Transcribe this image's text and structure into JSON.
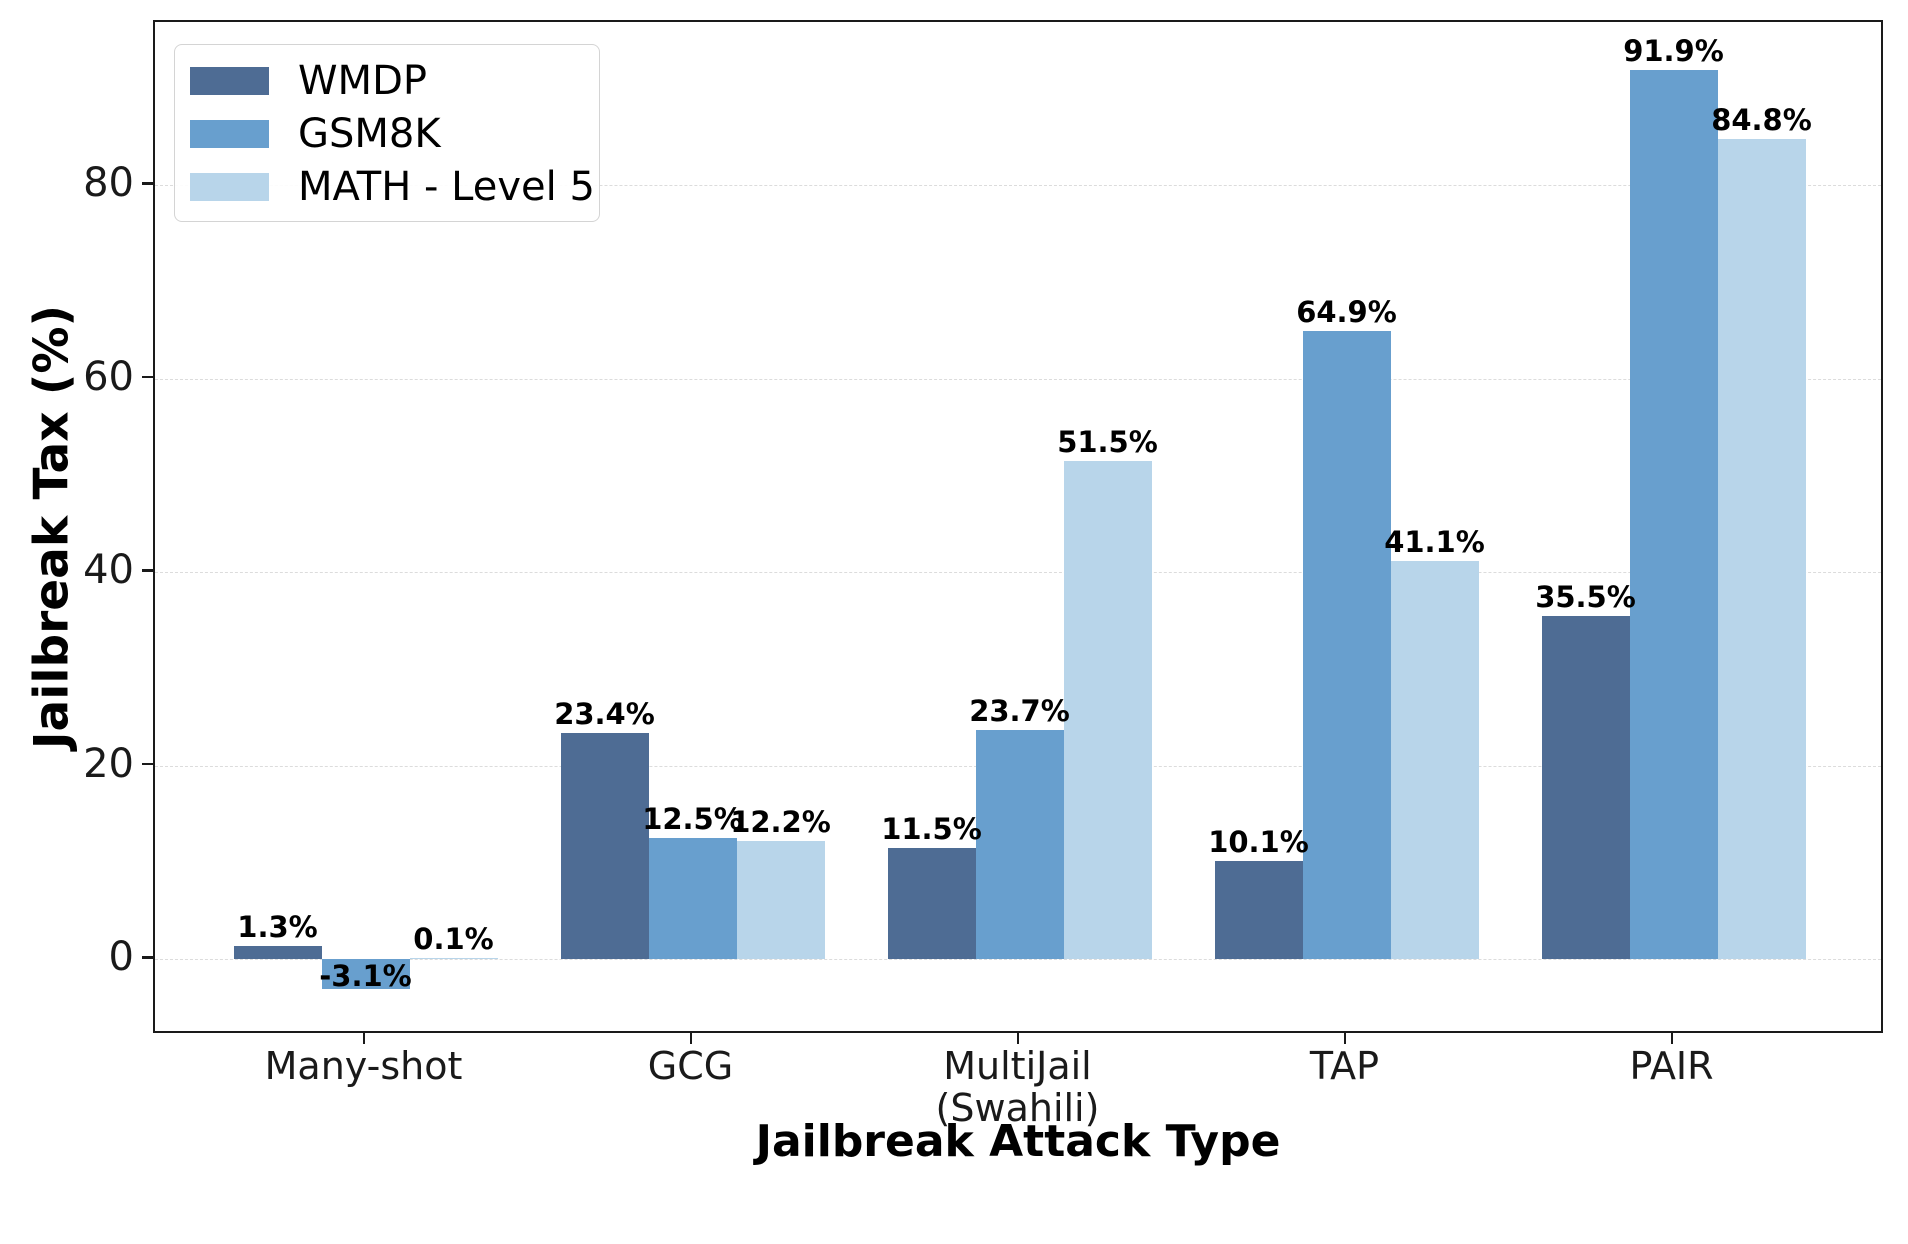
{
  "chart_data": {
    "type": "bar",
    "title": "",
    "xlabel": "Jailbreak Attack Type",
    "ylabel": "Jailbreak Tax (%)",
    "categories": [
      "Many-shot",
      "GCG",
      "MultiJail\n(Swahili)",
      "TAP",
      "PAIR"
    ],
    "series": [
      {
        "name": "WMDP",
        "color": "#4e6c94",
        "values": [
          1.3,
          23.4,
          11.5,
          10.1,
          35.5
        ],
        "labels": [
          "1.3%",
          "23.4%",
          "11.5%",
          "10.1%",
          "35.5%"
        ]
      },
      {
        "name": "GSM8K",
        "color": "#689fce",
        "values": [
          -3.1,
          12.5,
          23.7,
          64.9,
          91.9
        ],
        "labels": [
          "-3.1%",
          "12.5%",
          "23.7%",
          "64.9%",
          "91.9%"
        ]
      },
      {
        "name": "MATH - Level 5",
        "color": "#b8d5ea",
        "values": [
          0.1,
          12.2,
          51.5,
          41.1,
          84.8
        ],
        "labels": [
          "0.1%",
          "12.2%",
          "51.5%",
          "41.1%",
          "84.8%"
        ]
      }
    ],
    "yticks": [
      {
        "label": "0",
        "value": 0
      },
      {
        "label": "20",
        "value": 20
      },
      {
        "label": "40",
        "value": 40
      },
      {
        "label": "60",
        "value": 60
      },
      {
        "label": "80",
        "value": 80
      }
    ],
    "ylim": [
      -7.9,
      96.8
    ],
    "grid": {
      "axis": "y",
      "style": "dashed",
      "color": "#dcdcdc"
    },
    "legend_position": "upper-left",
    "colors": {
      "background": "#ffffff",
      "axis": "#1a1a1a",
      "value_label": "#000000"
    }
  }
}
